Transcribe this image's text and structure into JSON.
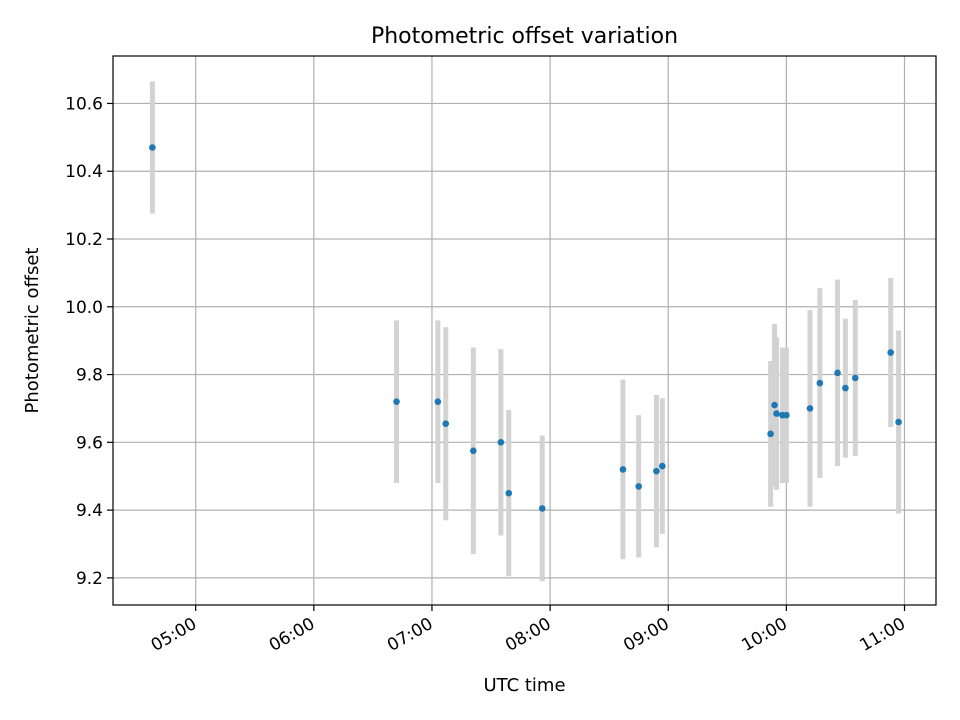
{
  "chart_data": {
    "type": "scatter",
    "title": "Photometric offset variation",
    "xlabel": "UTC time",
    "ylabel": "Photometric offset",
    "x_is_time": true,
    "xlim": [
      "04:18",
      "11:16"
    ],
    "ylim": [
      9.12,
      10.74
    ],
    "x_ticks": [
      "05:00",
      "06:00",
      "07:00",
      "08:00",
      "09:00",
      "10:00",
      "11:00"
    ],
    "y_ticks": [
      "9.2",
      "9.4",
      "9.6",
      "9.8",
      "10.0",
      "10.2",
      "10.4",
      "10.6"
    ],
    "grid": true,
    "legend": "none",
    "series": [
      {
        "marker": "dot",
        "error_bars": "vertical",
        "points": [
          {
            "x": "04:38",
            "y": 10.47,
            "err": 0.195
          },
          {
            "x": "06:42",
            "y": 9.72,
            "err": 0.24
          },
          {
            "x": "07:03",
            "y": 9.72,
            "err": 0.24
          },
          {
            "x": "07:07",
            "y": 9.655,
            "err": 0.285
          },
          {
            "x": "07:21",
            "y": 9.575,
            "err": 0.305
          },
          {
            "x": "07:35",
            "y": 9.6,
            "err": 0.275
          },
          {
            "x": "07:39",
            "y": 9.45,
            "err": 0.245
          },
          {
            "x": "07:56",
            "y": 9.405,
            "err": 0.215
          },
          {
            "x": "08:37",
            "y": 9.52,
            "err": 0.265
          },
          {
            "x": "08:45",
            "y": 9.47,
            "err": 0.21
          },
          {
            "x": "08:54",
            "y": 9.515,
            "err": 0.225
          },
          {
            "x": "08:57",
            "y": 9.53,
            "err": 0.2
          },
          {
            "x": "09:52",
            "y": 9.625,
            "err": 0.215
          },
          {
            "x": "09:54",
            "y": 9.71,
            "err": 0.24
          },
          {
            "x": "09:55",
            "y": 9.685,
            "err": 0.225
          },
          {
            "x": "09:58",
            "y": 9.68,
            "err": 0.2
          },
          {
            "x": "10:00",
            "y": 9.68,
            "err": 0.2
          },
          {
            "x": "10:12",
            "y": 9.7,
            "err": 0.29
          },
          {
            "x": "10:17",
            "y": 9.775,
            "err": 0.28
          },
          {
            "x": "10:26",
            "y": 9.805,
            "err": 0.275
          },
          {
            "x": "10:30",
            "y": 9.76,
            "err": 0.205
          },
          {
            "x": "10:35",
            "y": 9.79,
            "err": 0.23
          },
          {
            "x": "10:53",
            "y": 9.865,
            "err": 0.22
          },
          {
            "x": "10:57",
            "y": 9.66,
            "err": 0.27
          }
        ]
      }
    ],
    "colors": {
      "marker": "#1f77b4",
      "error_bar": "#d3d3d3",
      "grid": "#b0b0b0",
      "axis": "#000000"
    }
  }
}
